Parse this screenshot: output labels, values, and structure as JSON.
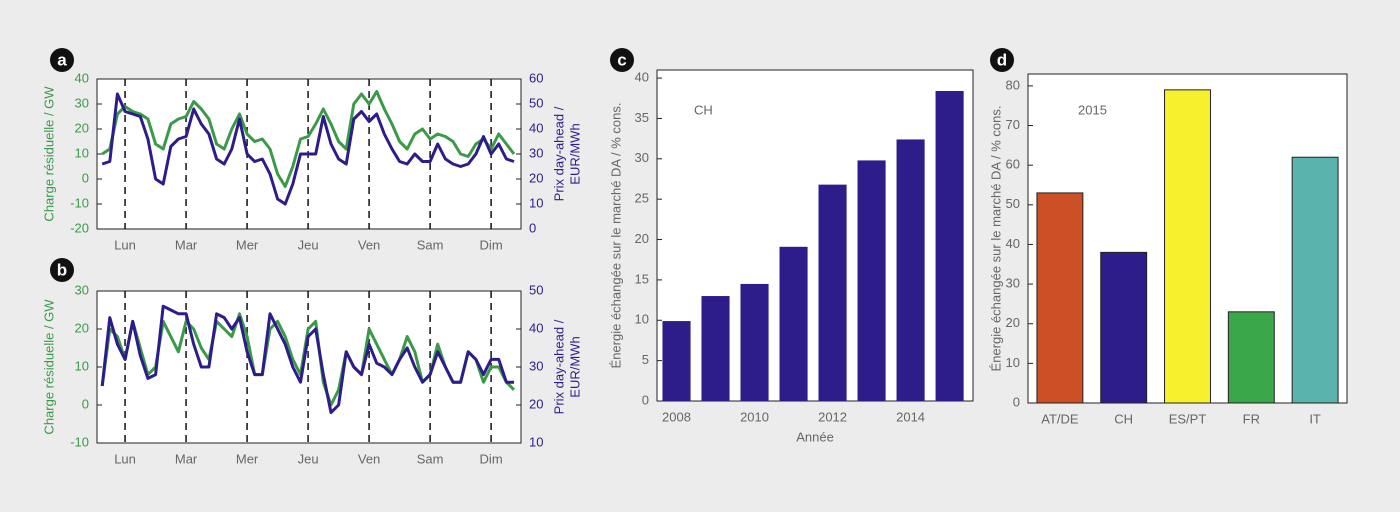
{
  "chart_data": [
    {
      "type": "line",
      "label": "a",
      "ylabel": "Charge résiduelle / GW",
      "y2label": [
        "Prix day-ahead /",
        "EUR/MWh"
      ],
      "xlim": [
        -0.46,
        6.49
      ],
      "xticks": [
        {
          "value": 0,
          "label": "Lun"
        },
        {
          "value": 1,
          "label": "Mar"
        },
        {
          "value": 2,
          "label": "Mer"
        },
        {
          "value": 3,
          "label": "Jeu"
        },
        {
          "value": 4,
          "label": "Ven"
        },
        {
          "value": 5,
          "label": "Sam"
        },
        {
          "value": 6,
          "label": "Dim"
        }
      ],
      "xgrid": true,
      "ylim": [
        -20,
        40
      ],
      "yticks": [
        -20,
        -10,
        0,
        10,
        20,
        30,
        40
      ],
      "y2lim": [
        0,
        60
      ],
      "y2ticks": [
        0,
        10,
        20,
        30,
        40,
        50,
        60
      ],
      "x": [
        -0.375,
        -0.25,
        -0.125,
        0,
        0.125,
        0.25,
        0.375,
        0.5,
        0.625,
        0.75,
        0.875,
        1,
        1.125,
        1.25,
        1.375,
        1.5,
        1.625,
        1.75,
        1.875,
        2,
        2.125,
        2.25,
        2.375,
        2.5,
        2.625,
        2.75,
        2.875,
        3,
        3.125,
        3.25,
        3.375,
        3.5,
        3.625,
        3.75,
        3.875,
        4,
        4.125,
        4.25,
        4.375,
        4.5,
        4.625,
        4.75,
        4.875,
        5,
        5.125,
        5.25,
        5.375,
        5.5,
        5.625,
        5.75,
        5.875,
        6,
        6.125,
        6.25,
        6.375
      ],
      "series": [
        {
          "color": "#3b9a48",
          "values": [
            10,
            12,
            26,
            29,
            27,
            26,
            24,
            14,
            12,
            22,
            24,
            25,
            31,
            28,
            24,
            14,
            12,
            20,
            26,
            18,
            15,
            16,
            12,
            2,
            -3,
            5,
            16,
            17,
            22,
            28,
            22,
            15,
            12,
            30,
            34,
            30,
            35,
            28,
            22,
            15,
            12,
            18,
            20,
            16,
            18,
            17,
            15,
            10,
            9,
            14,
            16,
            12,
            18,
            14,
            10
          ]
        },
        {
          "color": "#2d1d8a",
          "axis": "y2",
          "values": [
            26,
            27,
            54,
            47,
            46,
            45,
            36,
            20,
            18,
            33,
            36,
            37,
            48,
            42,
            38,
            28,
            26,
            32,
            44,
            30,
            27,
            28,
            22,
            12,
            10,
            18,
            30,
            30,
            30,
            45,
            34,
            28,
            26,
            44,
            47,
            43,
            46,
            38,
            32,
            27,
            26,
            30,
            27,
            27,
            34,
            28,
            26,
            25,
            26,
            30,
            37,
            30,
            34,
            28,
            27
          ]
        }
      ]
    },
    {
      "type": "line",
      "label": "b",
      "ylabel": "Charge résiduelle / GW",
      "y2label": [
        "Prix day-ahead /",
        "EUR/MWh"
      ],
      "xlim": [
        -0.46,
        6.49
      ],
      "xticks": [
        {
          "value": 0,
          "label": "Lun"
        },
        {
          "value": 1,
          "label": "Mar"
        },
        {
          "value": 2,
          "label": "Mer"
        },
        {
          "value": 3,
          "label": "Jeu"
        },
        {
          "value": 4,
          "label": "Ven"
        },
        {
          "value": 5,
          "label": "Sam"
        },
        {
          "value": 6,
          "label": "Dim"
        }
      ],
      "xgrid": true,
      "ylim": [
        -10,
        30
      ],
      "yticks": [
        -10,
        0,
        10,
        20,
        30
      ],
      "y2lim": [
        10,
        50
      ],
      "y2ticks": [
        10,
        20,
        30,
        40,
        50
      ],
      "x": [
        -0.375,
        -0.25,
        -0.125,
        0,
        0.125,
        0.25,
        0.375,
        0.5,
        0.625,
        0.75,
        0.875,
        1,
        1.125,
        1.25,
        1.375,
        1.5,
        1.625,
        1.75,
        1.875,
        2,
        2.125,
        2.25,
        2.375,
        2.5,
        2.625,
        2.75,
        2.875,
        3,
        3.125,
        3.25,
        3.375,
        3.5,
        3.625,
        3.75,
        3.875,
        4,
        4.125,
        4.25,
        4.375,
        4.5,
        4.625,
        4.75,
        4.875,
        5,
        5.125,
        5.25,
        5.375,
        5.5,
        5.625,
        5.75,
        5.875,
        6,
        6.125,
        6.25,
        6.375
      ],
      "series": [
        {
          "color": "#3b9a48",
          "values": [
            5,
            20,
            18,
            12,
            22,
            15,
            8,
            10,
            22,
            18,
            14,
            22,
            20,
            15,
            12,
            22,
            20,
            18,
            24,
            18,
            8,
            8,
            20,
            22,
            18,
            12,
            8,
            20,
            22,
            6,
            0,
            4,
            14,
            10,
            8,
            20,
            16,
            12,
            8,
            12,
            18,
            14,
            6,
            8,
            16,
            10,
            6,
            6,
            14,
            12,
            6,
            10,
            10,
            6,
            4
          ]
        },
        {
          "color": "#2d1d8a",
          "axis": "y2",
          "values": [
            25,
            43,
            36,
            32,
            42,
            33,
            27,
            28,
            46,
            45,
            44,
            44,
            36,
            30,
            30,
            44,
            43,
            40,
            43,
            34,
            28,
            28,
            44,
            40,
            36,
            30,
            26,
            38,
            40,
            28,
            18,
            20,
            34,
            30,
            28,
            36,
            31,
            30,
            28,
            32,
            35,
            30,
            26,
            28,
            34,
            30,
            26,
            26,
            34,
            32,
            28,
            32,
            32,
            26,
            26
          ]
        }
      ]
    },
    {
      "type": "bar",
      "label": "c",
      "annotation": "CH",
      "xlabel": "Année",
      "ylabel": "Énergie échangée sur le marché DA / % cons.",
      "x": [
        2008,
        2009,
        2010,
        2011,
        2012,
        2013,
        2014,
        2015
      ],
      "values": [
        9.9,
        13,
        14.5,
        19.1,
        26.8,
        29.8,
        32.4,
        38.4
      ],
      "color": "#2d1d8a",
      "xlim": [
        2007.5,
        2015.6
      ],
      "xticks": [
        2008,
        2010,
        2012,
        2014
      ],
      "ylim": [
        0,
        41
      ],
      "yticks": [
        0,
        5,
        10,
        15,
        20,
        25,
        30,
        35,
        40
      ]
    },
    {
      "type": "bar",
      "label": "d",
      "annotation": "2015",
      "ylabel": "Énergie échangée sur le marché DA / % cons.",
      "categories": [
        "AT/DE",
        "CH",
        "ES/PT",
        "FR",
        "IT"
      ],
      "values": [
        53,
        38,
        79,
        23,
        62
      ],
      "colors": [
        "#cc4f26",
        "#2d1d8a",
        "#f7f02c",
        "#3aa84a",
        "#5bb3ae"
      ],
      "ylim": [
        0,
        83
      ],
      "yticks": [
        0,
        10,
        20,
        30,
        40,
        50,
        60,
        70,
        80
      ]
    }
  ]
}
